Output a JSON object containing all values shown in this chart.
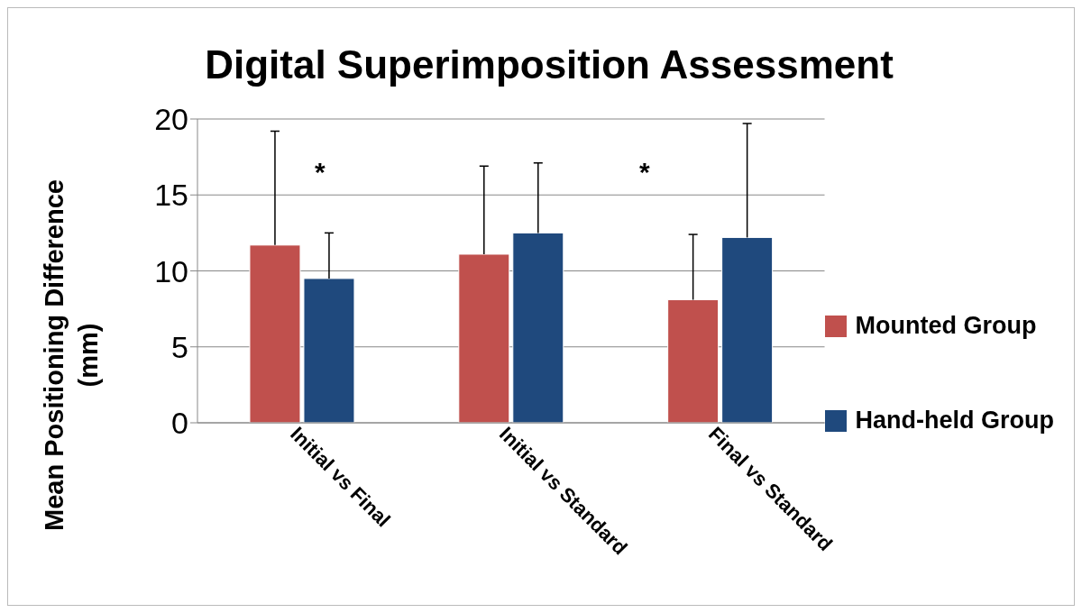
{
  "chart_data": {
    "type": "bar",
    "title": "Digital Superimposition Assessment",
    "ylabel": "Mean Positioning Difference (mm)",
    "categories": [
      "Initial vs Final",
      "Initial vs Standard",
      "Final vs Standard"
    ],
    "series": [
      {
        "name": "Mounted Group",
        "color": "#c0504d",
        "values": [
          11.7,
          11.1,
          8.1
        ],
        "errors": [
          [
            11.7,
            19.2
          ],
          [
            11.1,
            16.9
          ],
          [
            8.1,
            12.4
          ]
        ]
      },
      {
        "name": "Hand-held Group",
        "color": "#1f497d",
        "values": [
          9.5,
          12.5,
          12.2
        ],
        "errors": [
          [
            9.5,
            12.5
          ],
          [
            12.5,
            17.1
          ],
          [
            12.2,
            19.7
          ]
        ]
      }
    ],
    "ylim": [
      0,
      20
    ],
    "yticks": [
      0,
      5,
      10,
      15,
      20
    ],
    "grid": "y",
    "legend": "right",
    "annotations": [
      "*",
      "*"
    ]
  }
}
